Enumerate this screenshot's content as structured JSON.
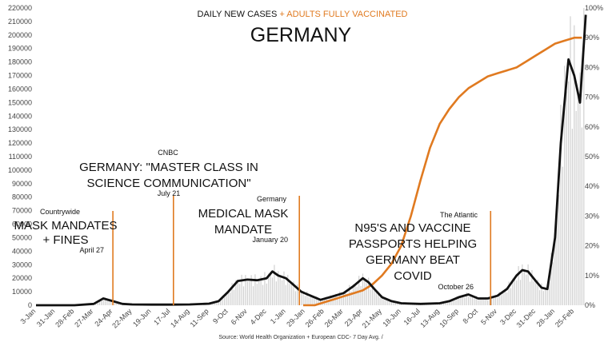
{
  "chart_data": {
    "type": "line",
    "title": "GERMANY",
    "subtitle_cases": "DAILY NEW CASES",
    "subtitle_plus": " + ",
    "subtitle_vaccinated": "ADULTS FULLY VACCINATED",
    "source": "Source: World Health Organization + European CDC- 7 Day Avg. /",
    "colors": {
      "cases": "#111111",
      "vaccinated": "#e07a20",
      "bars": "#d0d0d0",
      "annotation": "#e07a20"
    },
    "y_left": {
      "ticks": [
        "0",
        "10000",
        "20000",
        "30000",
        "40000",
        "50000",
        "60000",
        "70000",
        "80000",
        "90000",
        "100000",
        "110000",
        "120000",
        "130000",
        "140000",
        "150000",
        "160000",
        "170000",
        "180000",
        "190000",
        "200000",
        "210000",
        "220000"
      ],
      "lim": [
        0,
        220000
      ]
    },
    "y_right": {
      "ticks": [
        "0%",
        "10%",
        "20%",
        "30%",
        "40%",
        "50%",
        "60%",
        "70%",
        "80%",
        "90%",
        "100%"
      ],
      "lim": [
        0,
        100
      ]
    },
    "x_ticks": [
      "3-Jan",
      "31-Jan",
      "28-Feb",
      "27-Mar",
      "24-Apr",
      "22-May",
      "19-Jun",
      "17-Jul",
      "14-Aug",
      "11-Sep",
      "9-Oct",
      "6-Nov",
      "4-Dec",
      "1-Jan",
      "29-Jan",
      "26-Feb",
      "26-Mar",
      "23-Apr",
      "21-May",
      "18-Jun",
      "16-Jul",
      "13-Aug",
      "10-Sep",
      "8-Oct",
      "5-Nov",
      "3-Dec",
      "31-Dec",
      "28-Jan",
      "25-Feb"
    ],
    "series": [
      {
        "name": "DAILY NEW CASES",
        "x": [
          0,
          1,
          2,
          3,
          3.5,
          4,
          4.5,
          5,
          6,
          7,
          8,
          9,
          9.5,
          10,
          10.5,
          11,
          11.5,
          12,
          12.3,
          12.6,
          13,
          13.4,
          13.8,
          14.3,
          14.8,
          15.3,
          16,
          16.5,
          17,
          17.3,
          17.6,
          18,
          18.5,
          19,
          20,
          21,
          21.5,
          22,
          22.5,
          23,
          23.5,
          24,
          24.5,
          25,
          25.3,
          25.6,
          26,
          26.3,
          26.6,
          27,
          27.3,
          27.7,
          28,
          28.3,
          28.6
        ],
        "y": [
          0,
          0,
          0,
          1000,
          5000,
          3000,
          1000,
          600,
          500,
          500,
          600,
          1200,
          3000,
          10000,
          18000,
          19000,
          18500,
          20000,
          25000,
          22000,
          20000,
          15000,
          10000,
          7000,
          4000,
          6000,
          9000,
          14000,
          20000,
          17000,
          12000,
          6000,
          3000,
          1500,
          1000,
          1500,
          3000,
          6000,
          8000,
          5000,
          5000,
          7000,
          12000,
          22000,
          26000,
          25000,
          18000,
          13000,
          12000,
          50000,
          120000,
          182000,
          170000,
          150000,
          215000
        ]
      },
      {
        "name": "ADULTS FULLY VACCINATED",
        "x": [
          13.9,
          14.5,
          15,
          15.5,
          16,
          16.5,
          17,
          17.5,
          18,
          18.5,
          19,
          19.5,
          20,
          20.5,
          21,
          21.5,
          22,
          22.5,
          23,
          23.5,
          24,
          24.5,
          25,
          25.5,
          26,
          26.5,
          27,
          27.5,
          28,
          28.4
        ],
        "y": [
          0,
          0,
          1,
          2,
          3,
          4,
          5,
          7,
          10,
          14,
          20,
          30,
          42,
          53,
          61,
          66,
          70,
          73,
          75,
          77,
          78,
          79,
          80,
          82,
          84,
          86,
          88,
          89,
          90,
          90
        ]
      }
    ],
    "annotations": [
      {
        "source": "Countrywide",
        "lines": [
          "MASK MANDATES",
          "+ FINES"
        ],
        "date": "April 27",
        "x": 4.0
      },
      {
        "source": "CNBC",
        "lines": [
          "GERMANY: \"MASTER CLASS IN",
          "SCIENCE COMMUNICATION\""
        ],
        "date": "July 21",
        "x": 7.15
      },
      {
        "source": "Germany",
        "lines": [
          "MEDICAL MASK",
          "MANDATE"
        ],
        "date": "January 20",
        "x": 13.7
      },
      {
        "source": "The Atlantic",
        "lines": [
          "N95'S AND VACCINE",
          "PASSPORTS HELPING",
          "GERMANY BEAT",
          "COVID"
        ],
        "date": "October 26",
        "x": 23.65
      }
    ]
  }
}
